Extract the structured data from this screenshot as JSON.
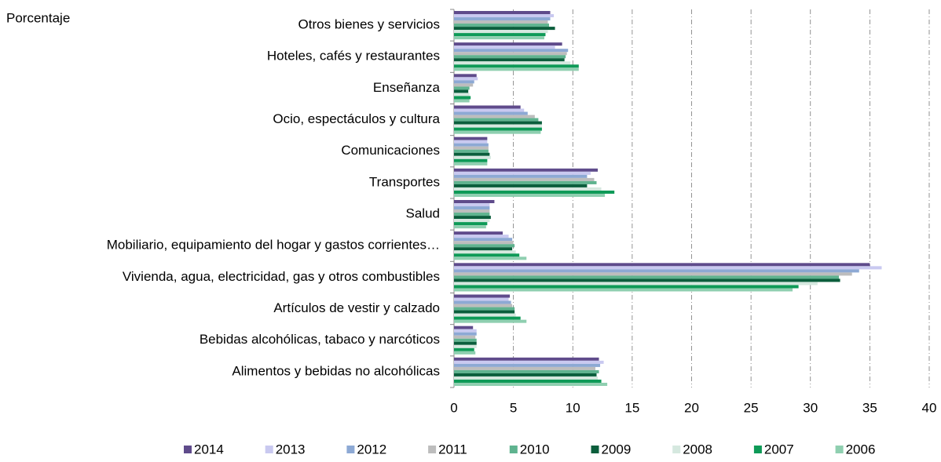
{
  "chart_data": {
    "type": "bar",
    "orientation": "horizontal",
    "y_label": "Porcentaje",
    "categories": [
      "Otros bienes y servicios",
      "Hoteles, cafés y restaurantes",
      "Enseñanza",
      "Ocio, espectáculos y cultura",
      "Comunicaciones",
      "Transportes",
      "Salud",
      "Mobiliario, equipamiento del hogar y gastos corrientes…",
      "Vivienda, agua, electricidad, gas y otros combustibles",
      "Artículos de vestir y calzado",
      "Bebidas alcohólicas, tabaco y narcóticos",
      "Alimentos y bebidas no alcohólicas"
    ],
    "series": [
      {
        "name": "2014",
        "color": "#5f4b8b",
        "values": [
          8.1,
          9.1,
          1.9,
          5.6,
          2.8,
          12.1,
          3.4,
          4.1,
          35.0,
          4.7,
          1.6,
          12.2
        ]
      },
      {
        "name": "2013",
        "color": "#c9c9f0",
        "values": [
          8.4,
          8.5,
          2.0,
          5.9,
          2.8,
          11.5,
          3.0,
          4.6,
          36.0,
          4.6,
          1.9,
          12.6
        ]
      },
      {
        "name": "2012",
        "color": "#8da9d4",
        "values": [
          8.1,
          9.6,
          1.7,
          6.2,
          2.9,
          11.2,
          3.0,
          4.9,
          34.1,
          4.8,
          1.9,
          12.3
        ]
      },
      {
        "name": "2011",
        "color": "#bdbdbd",
        "values": [
          7.9,
          9.5,
          1.6,
          6.8,
          2.9,
          11.8,
          3.0,
          5.0,
          33.5,
          4.9,
          1.8,
          11.9
        ]
      },
      {
        "name": "2010",
        "color": "#5fb38f",
        "values": [
          8.0,
          9.4,
          1.3,
          7.1,
          2.9,
          12.0,
          3.0,
          5.1,
          32.4,
          5.1,
          1.9,
          12.2
        ]
      },
      {
        "name": "2009",
        "color": "#0b5e3c",
        "values": [
          8.5,
          9.3,
          1.2,
          7.4,
          3.0,
          11.2,
          3.1,
          4.9,
          32.5,
          5.1,
          1.9,
          12.0
        ]
      },
      {
        "name": "2008",
        "color": "#d5e8df",
        "values": [
          7.9,
          9.8,
          1.3,
          7.4,
          3.1,
          12.4,
          3.0,
          5.2,
          30.6,
          5.2,
          1.9,
          12.1
        ]
      },
      {
        "name": "2007",
        "color": "#0e9a57",
        "values": [
          7.7,
          10.5,
          1.4,
          7.4,
          2.8,
          13.5,
          2.8,
          5.5,
          29.0,
          5.6,
          1.7,
          12.4
        ]
      },
      {
        "name": "2006",
        "color": "#8fcfb0",
        "values": [
          7.6,
          10.5,
          1.3,
          7.3,
          2.8,
          12.7,
          2.7,
          6.1,
          28.5,
          6.1,
          1.8,
          12.9
        ]
      }
    ],
    "xlim": [
      0,
      40
    ],
    "xticks": [
      0,
      5,
      10,
      15,
      20,
      25,
      30,
      35,
      40
    ],
    "grid": true,
    "legend": "bottom"
  }
}
